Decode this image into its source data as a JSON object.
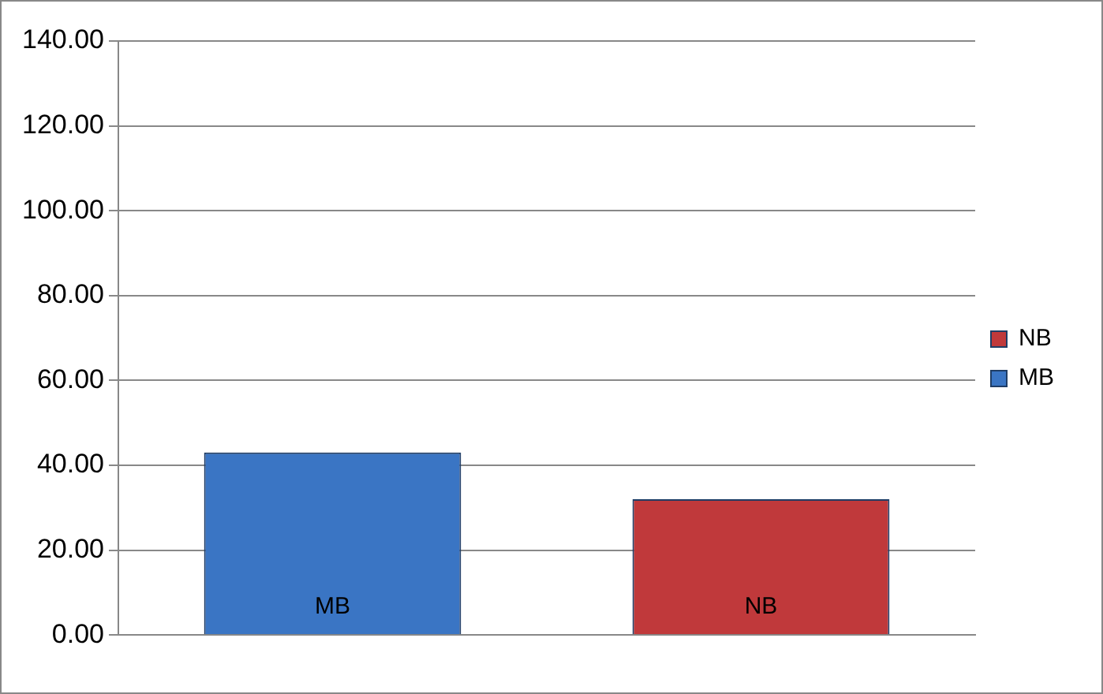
{
  "chart_data": {
    "type": "bar",
    "categories": [
      null,
      null
    ],
    "stacked": true,
    "series": [
      {
        "name": "MB",
        "color": "#3a75c4",
        "values": [
          43,
          null
        ]
      },
      {
        "name": "NB",
        "color": "#c0393b",
        "values": [
          null,
          32
        ]
      }
    ],
    "ylim": [
      0,
      140
    ],
    "yticks": [
      {
        "value": 0,
        "label": "0.00"
      },
      {
        "value": 20,
        "label": "20.00"
      },
      {
        "value": 40,
        "label": "40.00"
      },
      {
        "value": 60,
        "label": "60.00"
      },
      {
        "value": 80,
        "label": "80.00"
      },
      {
        "value": 100,
        "label": "100.00"
      },
      {
        "value": 120,
        "label": "120.00"
      },
      {
        "value": 140,
        "label": "140.00"
      }
    ],
    "grid": "y",
    "legend": "right"
  }
}
